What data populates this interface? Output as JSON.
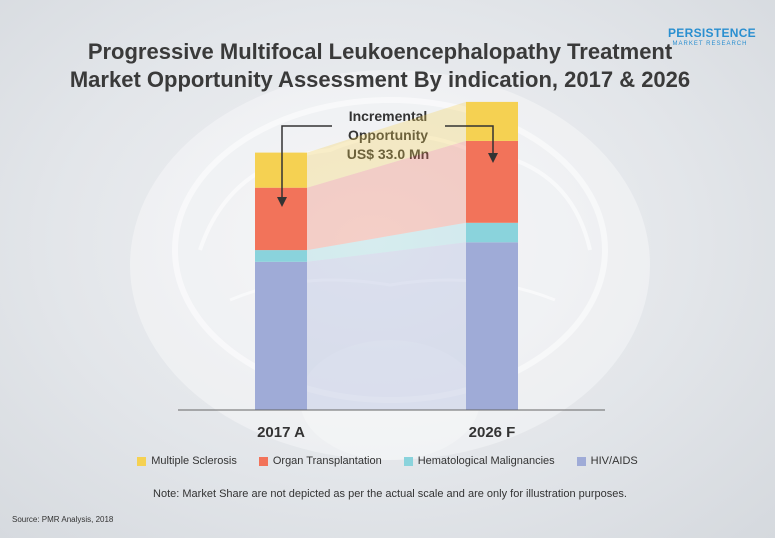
{
  "title_line1": "Progressive Multifocal Leukoencephalopathy Treatment",
  "title_line2": "Market Opportunity Assessment By indication, 2017 & 2026",
  "logo": {
    "main": "PERSISTENCE",
    "sub": "MARKET RESEARCH"
  },
  "annotation": {
    "line1": "Incremental",
    "line2": "Opportunity",
    "line3": "US$ 33.0 Mn"
  },
  "note": "Note: Market Share are not depicted as per the actual scale and are only for illustration purposes.",
  "source": "Source: PMR Analysis, 2018",
  "colors": {
    "multiple_sclerosis": "#f5d152",
    "organ_transplantation": "#f2735a",
    "hematological_malignancies": "#8ad3dc",
    "hiv_aids": "#9fabd7"
  },
  "chart_data": {
    "type": "bar",
    "stacked": true,
    "categories": [
      "2017 A",
      "2026 F"
    ],
    "series": [
      {
        "name": "HIV/AIDS",
        "color": "#9fabd7",
        "values": [
          38,
          43
        ]
      },
      {
        "name": "Hematological Malignancies",
        "color": "#8ad3dc",
        "values": [
          3,
          5
        ]
      },
      {
        "name": "Organ Transplantation",
        "color": "#f2735a",
        "values": [
          16,
          21
        ]
      },
      {
        "name": "Multiple Sclerosis",
        "color": "#f5d152",
        "values": [
          9,
          10
        ]
      }
    ],
    "annotation": "Incremental Opportunity US$ 33.0 Mn",
    "legend_position": "bottom",
    "grid": false
  }
}
